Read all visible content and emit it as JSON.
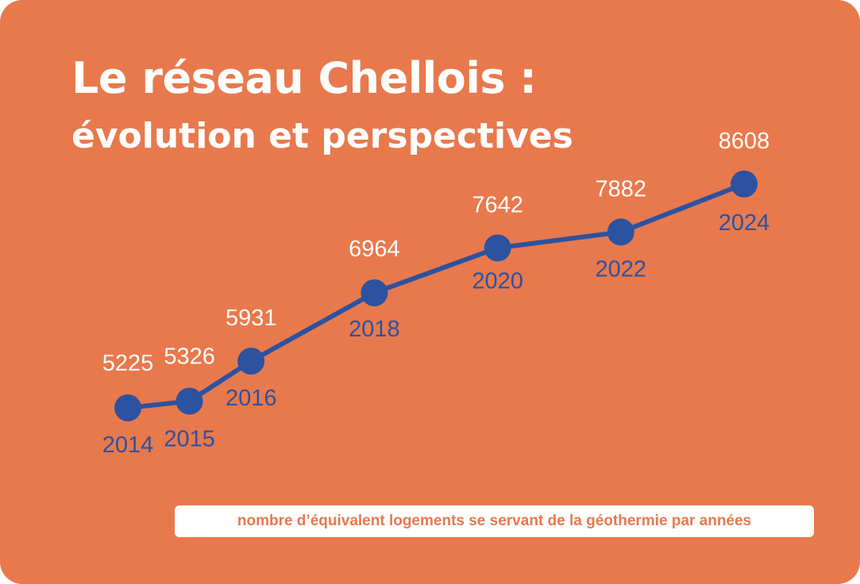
{
  "colors": {
    "background": "#e8794d",
    "line": "#2d52a0",
    "value_text": "#ffffff",
    "year_text": "#2d52a0",
    "caption_box": "#ffffff"
  },
  "chart_data": {
    "type": "line",
    "title": "Le réseau Chellois :",
    "subtitle": "évolution et perspectives",
    "x": [
      "2014",
      "2015",
      "2016",
      "2018",
      "2020",
      "2022",
      "2024"
    ],
    "series": [
      {
        "values": [
          5225,
          5326,
          5931,
          6964,
          7642,
          7882,
          8608
        ]
      }
    ],
    "value_labels": [
      "5225",
      "5326",
      "5931",
      "6964",
      "7642",
      "7882",
      "8608"
    ],
    "caption": "nombre d’équivalent logements se servant de la géothermie par années",
    "grid": false,
    "legend": "none"
  }
}
